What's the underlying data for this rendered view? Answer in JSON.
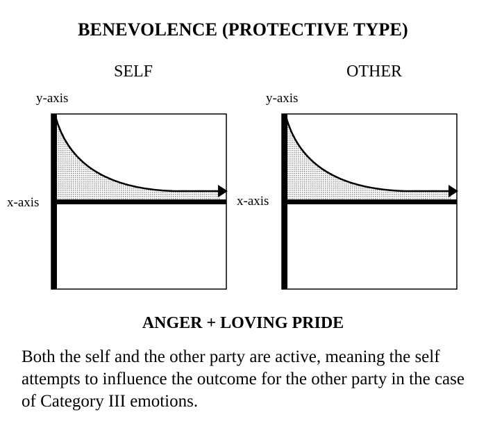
{
  "title": "BENEVOLENCE (PROTECTIVE TYPE)",
  "panels": [
    {
      "label": "SELF",
      "y_axis_label": "y-axis",
      "x_axis_label": "x-axis"
    },
    {
      "label": "OTHER",
      "y_axis_label": "y-axis",
      "x_axis_label": "x-axis"
    }
  ],
  "subtitle": "ANGER + LOVING PRIDE",
  "caption": "Both the self and the other party are active, meaning the self attempts to influence the outcome for the other party in the case of Category III emotions.",
  "colors": {
    "line": "#000000",
    "fill": "#d9d9d9",
    "background": "#ffffff"
  }
}
